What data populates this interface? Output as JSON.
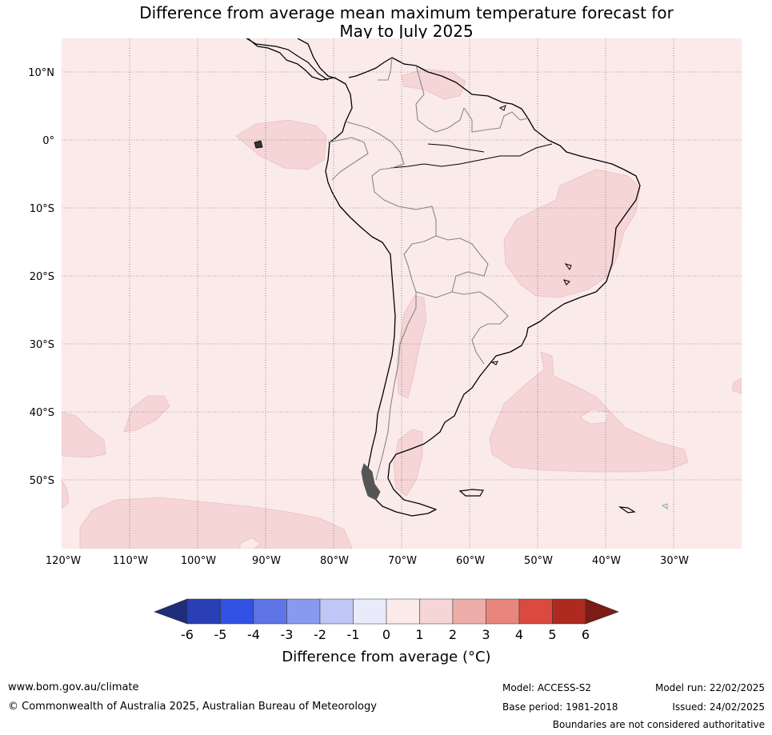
{
  "title": {
    "line1": "Difference from average mean maximum temperature forecast for",
    "line2": "May to July 2025"
  },
  "map": {
    "lat_labels": [
      "10°N",
      "0°",
      "10°S",
      "20°S",
      "30°S",
      "40°S",
      "50°S"
    ],
    "lon_labels": [
      "120°W",
      "110°W",
      "100°W",
      "90°W",
      "80°W",
      "70°W",
      "60°W",
      "50°W",
      "40°W",
      "30°W"
    ],
    "background_class": "0 to 1",
    "shaded_class": "1 to 2",
    "colors": {
      "ocean_land_0_1": "#fbeaea",
      "anomaly_1_2": "#f5d5d5",
      "coast": "#000000",
      "borders": "#808080"
    }
  },
  "colorbar": {
    "ticks": [
      "-6",
      "-5",
      "-4",
      "-3",
      "-2",
      "-1",
      "0",
      "1",
      "2",
      "3",
      "4",
      "5",
      "6"
    ],
    "colors": [
      "#1f2d7a",
      "#2a3fb6",
      "#3152e3",
      "#5f74e6",
      "#8999ef",
      "#c0c6f5",
      "#e9ebfb",
      "#fbeaea",
      "#f5d5d5",
      "#edaeaa",
      "#e8867e",
      "#da4a3e",
      "#ae2a20",
      "#7a1d16"
    ],
    "label": "Difference from average ($^\\circ$C)",
    "label_display": "Difference from average (°C)"
  },
  "footer": {
    "website": "www.bom.gov.au/climate",
    "copyright": "© Commonwealth of Australia 2025, Australian Bureau of Meteorology",
    "model": "Model: ACCESS-S2",
    "base_period": "Base period: 1981-2018",
    "model_run": "Model run: 22/02/2025",
    "issued": "Issued: 24/02/2025",
    "disclaimer": "Boundaries are not considered authoritative"
  }
}
